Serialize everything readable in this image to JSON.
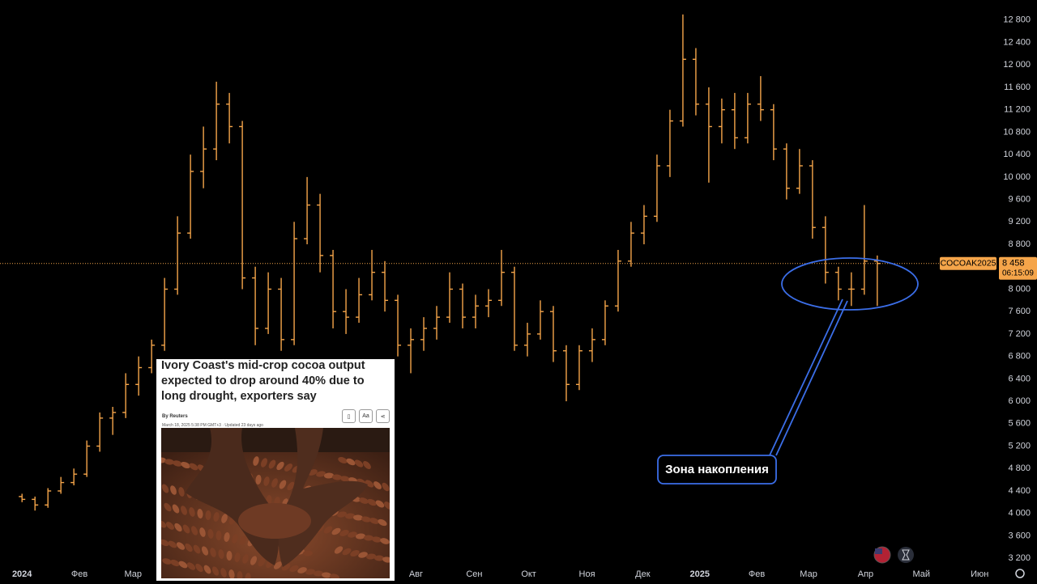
{
  "chart_data": {
    "type": "ohlc",
    "series": [
      {
        "name": "COCOAK2025",
        "color": "#f5a54a",
        "open": [
          4300,
          4250,
          4150,
          4400,
          4550,
          4700,
          5200,
          5700,
          5800,
          6300,
          6600,
          7000,
          8000,
          9000,
          10100,
          10500,
          11300,
          10900,
          8200,
          7300,
          8000,
          7100,
          8900,
          9500,
          8600,
          7600,
          7500,
          7900,
          8300,
          7800,
          7000,
          7100,
          7300,
          7500,
          8000,
          7500,
          7700,
          7800,
          8300,
          7000,
          7200,
          7600,
          6900,
          6300,
          6900,
          7100,
          7700,
          8500,
          9000,
          9300,
          10200,
          11000,
          12100,
          11300,
          10900,
          11200,
          10700,
          11300,
          11200,
          10500,
          9800,
          10200,
          9100,
          8300,
          8000,
          8000,
          8500
        ],
        "high": [
          4350,
          4300,
          4450,
          4650,
          4800,
          5300,
          5800,
          5900,
          6500,
          6800,
          7100,
          8200,
          9300,
          10400,
          10900,
          11700,
          11500,
          11000,
          8400,
          8300,
          8200,
          9200,
          10000,
          9700,
          8700,
          8000,
          8200,
          8700,
          8500,
          7900,
          7300,
          7500,
          7700,
          8300,
          8100,
          7900,
          8000,
          8700,
          8400,
          7400,
          7800,
          7700,
          7000,
          7000,
          7300,
          7800,
          8700,
          9200,
          9500,
          10400,
          11200,
          12900,
          12300,
          11600,
          11400,
          11500,
          11500,
          11800,
          11300,
          10600,
          10500,
          10300,
          9300,
          8400,
          8300,
          9500,
          8600
        ],
        "low": [
          4200,
          4050,
          4100,
          4350,
          4500,
          4650,
          5100,
          5400,
          5700,
          6100,
          6500,
          6900,
          7900,
          8900,
          9800,
          10300,
          10600,
          8000,
          7000,
          7200,
          6900,
          7000,
          8800,
          8300,
          7300,
          7200,
          7400,
          7800,
          7600,
          6800,
          6500,
          6900,
          7100,
          7400,
          7300,
          7300,
          7500,
          7700,
          6900,
          6800,
          7100,
          6700,
          6000,
          6200,
          6700,
          7000,
          7600,
          8400,
          8800,
          9200,
          10000,
          10900,
          11100,
          9900,
          10600,
          10500,
          10600,
          11000,
          10300,
          9600,
          9700,
          8900,
          8100,
          7800,
          7700,
          7900,
          7700
        ],
        "close": [
          4250,
          4150,
          4400,
          4550,
          4700,
          5200,
          5700,
          5800,
          6300,
          6600,
          7000,
          8000,
          9000,
          10100,
          10500,
          11300,
          10900,
          8200,
          7300,
          8000,
          7100,
          8900,
          9500,
          8600,
          7600,
          7500,
          7900,
          8300,
          7800,
          7000,
          7100,
          7300,
          7500,
          8000,
          7500,
          7700,
          7800,
          8300,
          7000,
          7200,
          7600,
          6900,
          6300,
          6900,
          7100,
          7700,
          8500,
          9000,
          9300,
          10200,
          11000,
          12100,
          11300,
          10900,
          11200,
          10700,
          11300,
          11200,
          10500,
          9800,
          10200,
          9100,
          8300,
          8000,
          8000,
          8500,
          8458
        ]
      }
    ],
    "last_price_label": "8 458",
    "countdown": "06:15:09",
    "xlim": [
      -1.7,
      75.2
    ],
    "xticks": [
      {
        "value": 0,
        "label": "2024"
      },
      {
        "value": 4.43,
        "label": "Фев"
      },
      {
        "value": 8.57,
        "label": "Мар"
      },
      {
        "value": 30.4,
        "label": "Авг"
      },
      {
        "value": 34.9,
        "label": "Сен"
      },
      {
        "value": 39.1,
        "label": "Окт"
      },
      {
        "value": 43.6,
        "label": "Ноя"
      },
      {
        "value": 47.9,
        "label": "Дек"
      },
      {
        "value": 52.3,
        "label": "2025"
      },
      {
        "value": 56.7,
        "label": "Фев"
      },
      {
        "value": 60.7,
        "label": "Мар"
      },
      {
        "value": 65.1,
        "label": "Апр"
      },
      {
        "value": 69.4,
        "label": "Май"
      },
      {
        "value": 73.9,
        "label": "Июн"
      }
    ],
    "ylim": [
      3000,
      13100
    ],
    "yticks": [
      {
        "value": 3200,
        "label": "3 200"
      },
      {
        "value": 3600,
        "label": "3 600"
      },
      {
        "value": 4000,
        "label": "4 000"
      },
      {
        "value": 4400,
        "label": "4 400"
      },
      {
        "value": 4800,
        "label": "4 800"
      },
      {
        "value": 5200,
        "label": "5 200"
      },
      {
        "value": 5600,
        "label": "5 600"
      },
      {
        "value": 6000,
        "label": "6 000"
      },
      {
        "value": 6400,
        "label": "6 400"
      },
      {
        "value": 6800,
        "label": "6 800"
      },
      {
        "value": 7200,
        "label": "7 200"
      },
      {
        "value": 7600,
        "label": "7 600"
      },
      {
        "value": 8000,
        "label": "8 000"
      },
      {
        "value": 8400,
        "label": "8 400"
      },
      {
        "value": 8800,
        "label": "8 800"
      },
      {
        "value": 9200,
        "label": "9 200"
      },
      {
        "value": 9600,
        "label": "9 600"
      },
      {
        "value": 10000,
        "label": "10 000"
      },
      {
        "value": 10400,
        "label": "10 400"
      },
      {
        "value": 10800,
        "label": "10 800"
      },
      {
        "value": 11200,
        "label": "11 200"
      },
      {
        "value": 11600,
        "label": "11 600"
      },
      {
        "value": 12000,
        "label": "12 000"
      },
      {
        "value": 12400,
        "label": "12 400"
      },
      {
        "value": 12800,
        "label": "12 800"
      }
    ],
    "grid": false,
    "annotation": "Зона накопления"
  },
  "news": {
    "headline": "Ivory Coast's mid-crop cocoa output expected to drop around 40% due to long drought, exporters say",
    "byline": "By Reuters",
    "date": "March 18, 2025 5:38 PM GMT+3 · Updated 23 days ago",
    "font_button": "Aa"
  }
}
